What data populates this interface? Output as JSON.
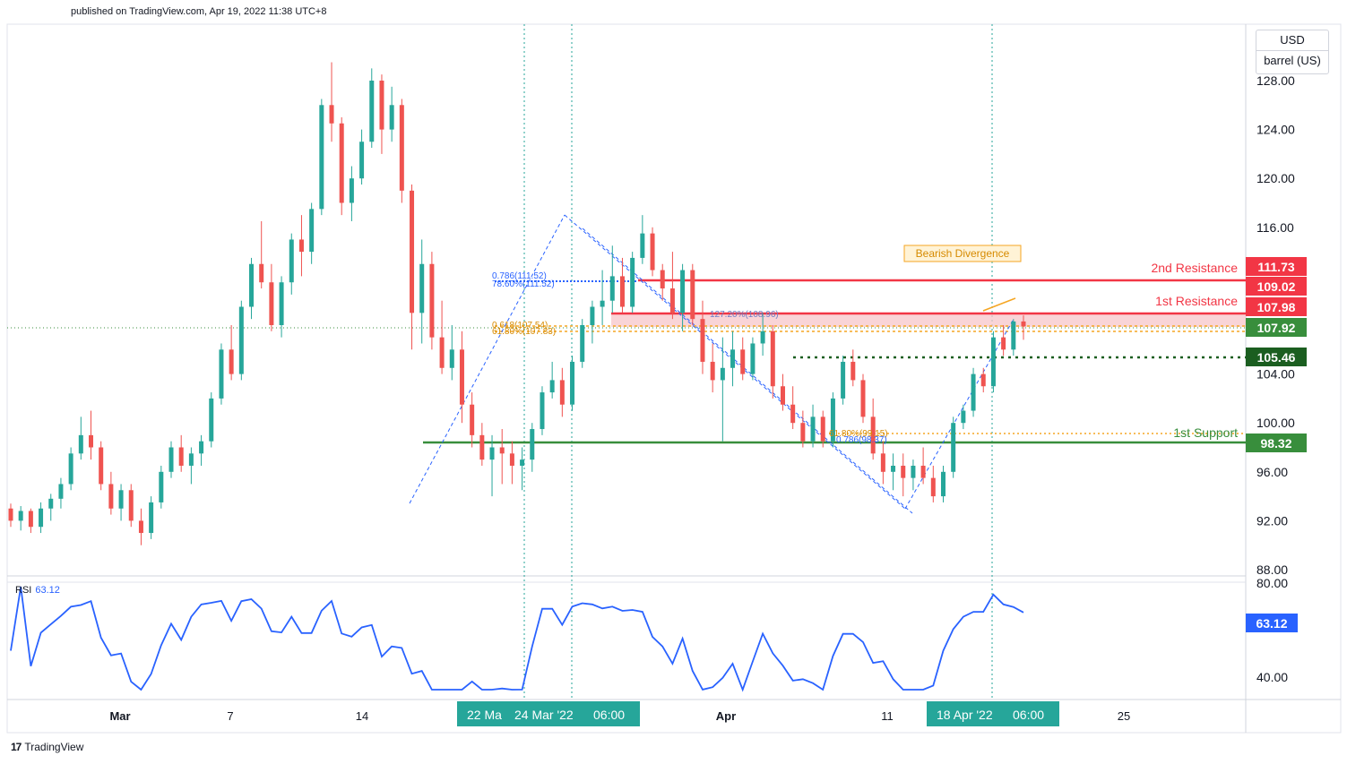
{
  "header": {
    "published": "published on TradingView.com, Apr 19, 2022 11:38 UTC+8"
  },
  "footer": {
    "brand": "TradingView",
    "logo_text": "17"
  },
  "currency": {
    "unit": "USD",
    "measure": "barrel (US)"
  },
  "rsi": {
    "label": "RSI",
    "value": "63.12"
  },
  "colors": {
    "up": "#26a69a",
    "down": "#ef5350",
    "resistance": "#f23645",
    "support": "#388e3c",
    "fib": "#f5a623",
    "trend": "#2962ff",
    "time_label": "#26a69a"
  },
  "chart_data": {
    "type": "candlestick",
    "y_axis": {
      "ticks": [
        "128.00",
        "124.00",
        "120.00",
        "116.00",
        "104.00",
        "100.00",
        "96.00",
        "92.00",
        "88.00"
      ],
      "range": [
        86.5,
        132
      ]
    },
    "x_axis": {
      "ticks": [
        "Mar",
        "7",
        "14",
        "Apr",
        "11",
        "25"
      ]
    },
    "price_labels": [
      {
        "text": "111.73",
        "value": 111.73,
        "color": "#f23645"
      },
      {
        "text": "109.02",
        "value": 109.02,
        "color": "#f23645"
      },
      {
        "text": "107.98",
        "value": 107.98,
        "color": "#f23645"
      },
      {
        "text": "107.92",
        "value": 107.92,
        "color": "#388e3c"
      },
      {
        "text": "105.46",
        "value": 105.46,
        "color": "#1b5e20"
      },
      {
        "text": "98.32",
        "value": 98.32,
        "color": "#388e3c"
      }
    ],
    "annotations": [
      {
        "text": "2nd Resistance",
        "value": 111.73
      },
      {
        "text": "1st Resistance",
        "value": 109.02
      },
      {
        "text": "1st Support",
        "value": 99.0
      },
      {
        "text": "Bearish Divergence",
        "value": 114.3
      }
    ],
    "fib_labels": [
      "0.786(111.52)",
      "78.60%(111.52)",
      "0.618(107.54)",
      "61.80%(107.83)",
      "127.20%(108.96)",
      "61.80%(99.15)",
      "0.786(98.37)"
    ],
    "time_labels": [
      "22 Ma",
      "24 Mar '22",
      "06:00",
      "18 Apr '22",
      "06:00"
    ],
    "rsi": {
      "ticks": [
        "80.00",
        "40.00"
      ],
      "value_label": "63.12"
    },
    "candles": [
      [
        93.0,
        93.4,
        91.5,
        92.0
      ],
      [
        92.0,
        93.2,
        91.2,
        92.8
      ],
      [
        92.8,
        93.0,
        91.0,
        91.5
      ],
      [
        91.5,
        93.5,
        91.0,
        93.0
      ],
      [
        93.0,
        94.2,
        92.0,
        93.8
      ],
      [
        93.8,
        95.5,
        93.0,
        95.0
      ],
      [
        95.0,
        98.0,
        94.5,
        97.5
      ],
      [
        97.5,
        100.5,
        97.0,
        99.0
      ],
      [
        99.0,
        101.0,
        97.0,
        98.0
      ],
      [
        98.0,
        98.5,
        94.5,
        95.0
      ],
      [
        95.0,
        96.0,
        92.5,
        93.0
      ],
      [
        93.0,
        95.0,
        92.0,
        94.5
      ],
      [
        94.5,
        95.0,
        91.5,
        92.0
      ],
      [
        92.0,
        93.0,
        90.0,
        91.0
      ],
      [
        91.0,
        94.0,
        90.5,
        93.5
      ],
      [
        93.5,
        96.5,
        93.0,
        96.0
      ],
      [
        96.0,
        98.5,
        95.5,
        98.0
      ],
      [
        98.0,
        99.0,
        96.0,
        96.5
      ],
      [
        96.5,
        98.0,
        95.0,
        97.5
      ],
      [
        97.5,
        99.0,
        96.5,
        98.5
      ],
      [
        98.5,
        102.5,
        98.0,
        102.0
      ],
      [
        102.0,
        106.5,
        101.5,
        106.0
      ],
      [
        106.0,
        108.0,
        103.5,
        104.0
      ],
      [
        104.0,
        110.0,
        103.5,
        109.5
      ],
      [
        109.5,
        113.5,
        108.5,
        113.0
      ],
      [
        113.0,
        116.5,
        111.0,
        111.5
      ],
      [
        111.5,
        113.0,
        107.5,
        108.0
      ],
      [
        108.0,
        112.0,
        107.0,
        111.5
      ],
      [
        111.5,
        115.5,
        110.5,
        115.0
      ],
      [
        115.0,
        117.0,
        112.0,
        114.0
      ],
      [
        114.0,
        118.0,
        113.0,
        117.5
      ],
      [
        117.5,
        126.5,
        117.0,
        126.0
      ],
      [
        126.0,
        129.5,
        123.0,
        124.5
      ],
      [
        124.5,
        125.0,
        117.0,
        118.0
      ],
      [
        118.0,
        121.0,
        116.5,
        120.0
      ],
      [
        120.0,
        124.0,
        119.5,
        123.0
      ],
      [
        123.0,
        129.0,
        122.5,
        128.0
      ],
      [
        128.0,
        128.5,
        122.0,
        124.0
      ],
      [
        124.0,
        127.5,
        123.0,
        126.0
      ],
      [
        126.0,
        126.5,
        118.0,
        119.0
      ],
      [
        119.0,
        119.5,
        106.0,
        109.0
      ],
      [
        109.0,
        115.0,
        106.5,
        113.0
      ],
      [
        113.0,
        114.0,
        106.0,
        107.0
      ],
      [
        107.0,
        110.0,
        104.0,
        104.5
      ],
      [
        104.5,
        108.0,
        103.5,
        106.0
      ],
      [
        106.0,
        107.5,
        100.0,
        101.5
      ],
      [
        101.5,
        102.5,
        98.0,
        99.0
      ],
      [
        99.0,
        100.0,
        96.5,
        97.0
      ],
      [
        97.0,
        99.0,
        94.0,
        98.0
      ],
      [
        98.0,
        99.5,
        95.0,
        97.5
      ],
      [
        97.5,
        98.5,
        95.0,
        96.5
      ],
      [
        96.5,
        98.0,
        94.5,
        97.0
      ],
      [
        97.0,
        100.0,
        96.0,
        99.5
      ],
      [
        99.5,
        103.0,
        99.0,
        102.5
      ],
      [
        102.5,
        105.0,
        102.0,
        103.5
      ],
      [
        103.5,
        104.5,
        100.5,
        101.5
      ],
      [
        101.5,
        105.5,
        101.0,
        105.0
      ],
      [
        105.0,
        108.5,
        104.5,
        108.0
      ],
      [
        108.0,
        110.0,
        106.5,
        109.5
      ],
      [
        109.5,
        112.5,
        108.0,
        110.0
      ],
      [
        110.0,
        114.5,
        109.0,
        112.0
      ],
      [
        112.0,
        113.5,
        109.0,
        109.5
      ],
      [
        109.5,
        114.0,
        109.0,
        113.5
      ],
      [
        113.5,
        117.0,
        113.0,
        115.5
      ],
      [
        115.5,
        116.0,
        112.0,
        112.5
      ],
      [
        112.5,
        113.0,
        110.0,
        111.0
      ],
      [
        111.0,
        114.0,
        108.5,
        109.0
      ],
      [
        109.0,
        113.0,
        107.5,
        112.5
      ],
      [
        112.5,
        113.0,
        108.0,
        108.5
      ],
      [
        108.5,
        110.0,
        104.0,
        105.0
      ],
      [
        105.0,
        106.5,
        102.5,
        103.5
      ],
      [
        103.5,
        107.0,
        98.5,
        104.5
      ],
      [
        104.5,
        107.5,
        103.0,
        106.0
      ],
      [
        106.0,
        107.0,
        103.5,
        104.0
      ],
      [
        104.0,
        107.0,
        103.5,
        106.5
      ],
      [
        106.5,
        109.0,
        105.5,
        107.5
      ],
      [
        107.5,
        108.0,
        102.0,
        103.0
      ],
      [
        103.0,
        104.0,
        101.0,
        101.5
      ],
      [
        101.5,
        103.0,
        99.5,
        100.0
      ],
      [
        100.0,
        101.0,
        98.0,
        98.5
      ],
      [
        98.5,
        101.5,
        98.0,
        100.5
      ],
      [
        100.5,
        101.0,
        98.0,
        98.5
      ],
      [
        98.5,
        102.5,
        98.0,
        102.0
      ],
      [
        102.0,
        105.5,
        101.5,
        105.0
      ],
      [
        105.0,
        106.0,
        103.0,
        103.5
      ],
      [
        103.5,
        104.0,
        100.0,
        100.5
      ],
      [
        100.5,
        102.0,
        97.0,
        97.5
      ],
      [
        97.5,
        98.5,
        95.0,
        96.0
      ],
      [
        96.0,
        97.5,
        94.5,
        96.5
      ],
      [
        96.5,
        97.5,
        94.0,
        95.5
      ],
      [
        95.5,
        97.0,
        94.5,
        96.5
      ],
      [
        96.5,
        98.0,
        95.0,
        95.5
      ],
      [
        95.5,
        96.5,
        93.5,
        94.0
      ],
      [
        94.0,
        96.5,
        93.5,
        96.0
      ],
      [
        96.0,
        100.5,
        95.5,
        100.0
      ],
      [
        100.0,
        101.5,
        99.5,
        101.0
      ],
      [
        101.0,
        104.5,
        100.5,
        104.0
      ],
      [
        104.0,
        104.5,
        102.5,
        103.0
      ],
      [
        103.0,
        107.5,
        102.5,
        107.0
      ],
      [
        107.0,
        108.0,
        105.5,
        106.0
      ],
      [
        106.0,
        108.5,
        105.5,
        108.3
      ],
      [
        108.3,
        108.8,
        106.8,
        107.9
      ]
    ]
  }
}
